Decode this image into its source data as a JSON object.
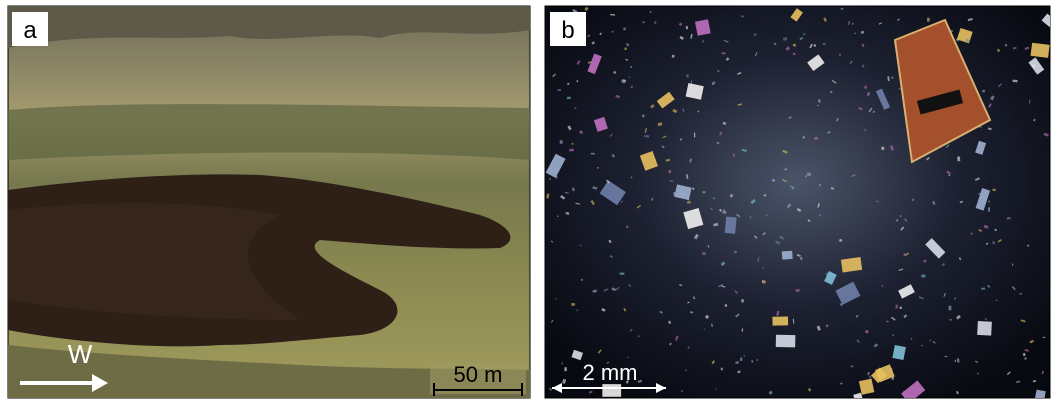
{
  "panels": [
    {
      "label": "a",
      "direction": "W",
      "scale": "50 m"
    },
    {
      "label": "b",
      "scale": "2 mm"
    }
  ]
}
